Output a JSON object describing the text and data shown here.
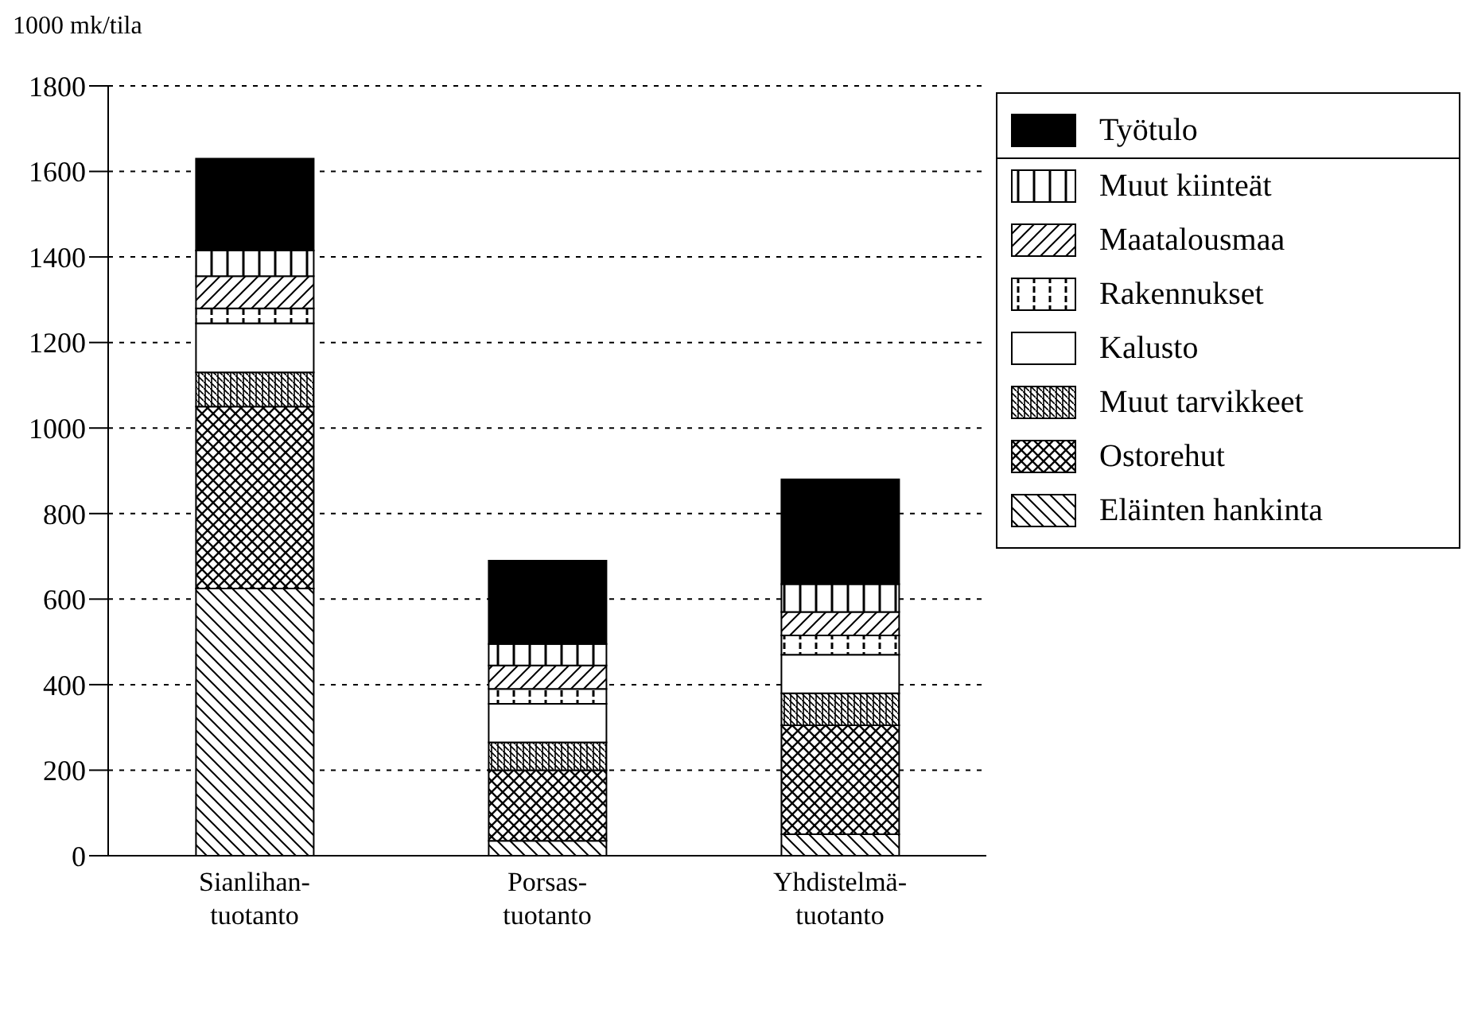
{
  "chart_data": {
    "type": "bar",
    "stacked": true,
    "ylabel": "1000 mk/tila",
    "categories": [
      "Sianlihan-\ntuotanto",
      "Porsas-\ntuotanto",
      "Yhdistelmä-\ntuotanto"
    ],
    "series": [
      {
        "name": "Eläinten hankinta",
        "color": "#000000",
        "values": [
          625,
          35,
          50
        ]
      },
      {
        "name": "Ostorehut",
        "color": "#000000",
        "values": [
          425,
          165,
          255
        ]
      },
      {
        "name": "Muut tarvikkeet",
        "color": "#000000",
        "values": [
          80,
          65,
          75
        ]
      },
      {
        "name": "Kalusto",
        "color": "#ffffff",
        "values": [
          115,
          90,
          90
        ]
      },
      {
        "name": "Rakennukset",
        "color": "#000000",
        "values": [
          35,
          35,
          45
        ]
      },
      {
        "name": "Maatalousmaa",
        "color": "#000000",
        "values": [
          75,
          55,
          55
        ]
      },
      {
        "name": "Muut kiinteät",
        "color": "#000000",
        "values": [
          60,
          50,
          65
        ]
      },
      {
        "name": "Työtulo",
        "color": "#000000",
        "values": [
          215,
          195,
          245
        ]
      }
    ],
    "ylim": [
      0,
      1800
    ],
    "yticks": [
      0,
      200,
      400,
      600,
      800,
      1000,
      1200,
      1400,
      1600,
      1800
    ],
    "grid": "y",
    "legend": "right"
  }
}
